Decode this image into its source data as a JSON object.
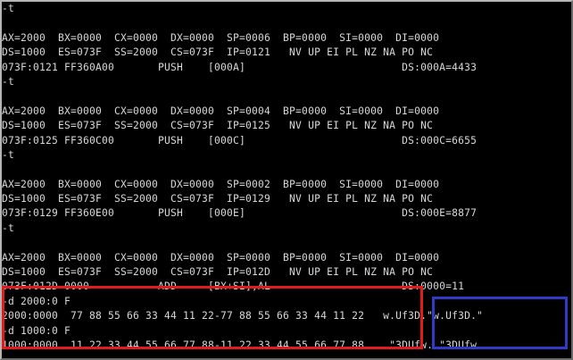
{
  "console": {
    "lines": [
      "-t",
      "",
      "AX=2000  BX=0000  CX=0000  DX=0000  SP=0006  BP=0000  SI=0000  DI=0000",
      "DS=1000  ES=073F  SS=2000  CS=073F  IP=0121   NV UP EI PL NZ NA PO NC",
      "073F:0121 FF360A00       PUSH    [000A]                         DS:000A=4433",
      "-t",
      "",
      "AX=2000  BX=0000  CX=0000  DX=0000  SP=0004  BP=0000  SI=0000  DI=0000",
      "DS=1000  ES=073F  SS=2000  CS=073F  IP=0125   NV UP EI PL NZ NA PO NC",
      "073F:0125 FF360C00       PUSH    [000C]                         DS:000C=6655",
      "-t",
      "",
      "AX=2000  BX=0000  CX=0000  DX=0000  SP=0002  BP=0000  SI=0000  DI=0000",
      "DS=1000  ES=073F  SS=2000  CS=073F  IP=0129   NV UP EI PL NZ NA PO NC",
      "073F:0129 FF360E00       PUSH    [000E]                         DS:000E=8877",
      "-t",
      "",
      "AX=2000  BX=0000  CX=0000  DX=0000  SP=0000  BP=0000  SI=0000  DI=0000",
      "DS=1000  ES=073F  SS=2000  CS=073F  IP=012D   NV UP EI PL NZ NA PO NC",
      "073F:012D 0000           ADD     [BX+SI],AL                     DS:0000=11",
      "-d 2000:0 F",
      "2000:0000  77 88 55 66 33 44 11 22-77 88 55 66 33 44 11 22   w.Uf3D.\"w.Uf3D.\"",
      "-d 1000:0 F",
      "1000:0000  11 22 33 44 55 66 77 88-11 22 33 44 55 66 77 88   .\"3DUfw..\"3DUfw."
    ]
  },
  "highlight_colors": {
    "red_box": "#e01c1c",
    "blue_box": "#2f3cc6"
  }
}
